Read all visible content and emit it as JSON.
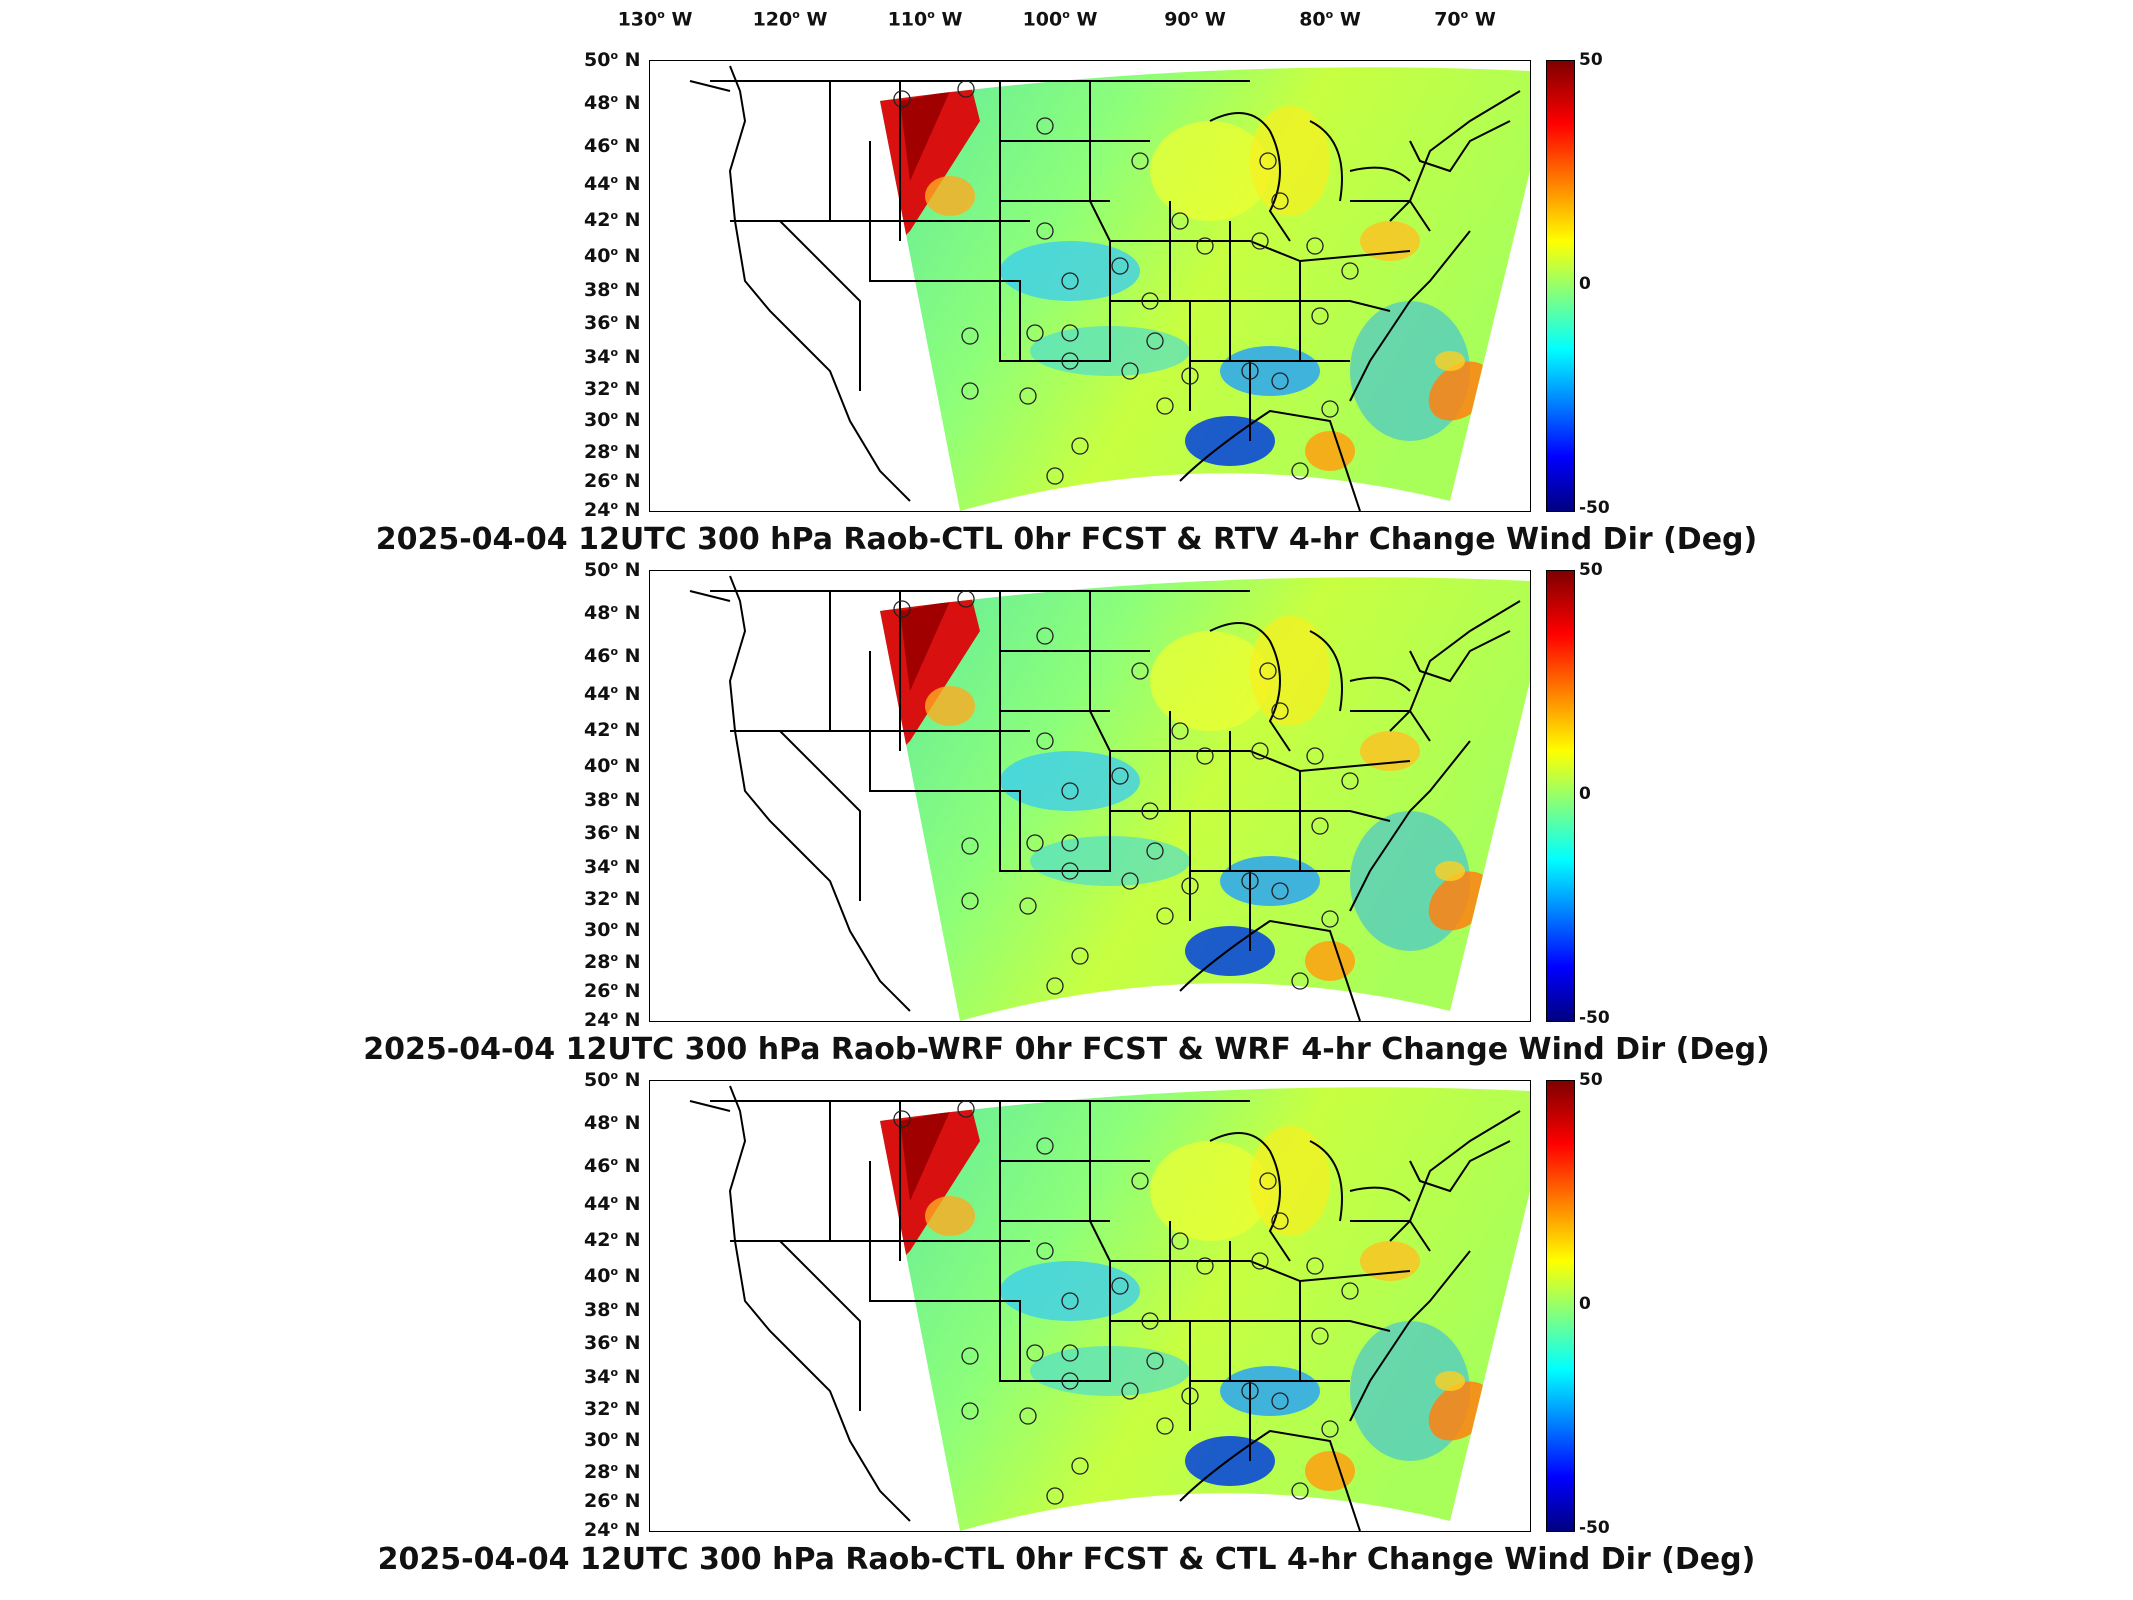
{
  "lon_labels": [
    {
      "deg": "130",
      "hem": "W"
    },
    {
      "deg": "120",
      "hem": "W"
    },
    {
      "deg": "110",
      "hem": "W"
    },
    {
      "deg": "100",
      "hem": "W"
    },
    {
      "deg": "90",
      "hem": "W"
    },
    {
      "deg": "80",
      "hem": "W"
    },
    {
      "deg": "70",
      "hem": "W"
    }
  ],
  "lat_labels": [
    {
      "deg": "50",
      "hem": "N"
    },
    {
      "deg": "48",
      "hem": "N"
    },
    {
      "deg": "46",
      "hem": "N"
    },
    {
      "deg": "44",
      "hem": "N"
    },
    {
      "deg": "42",
      "hem": "N"
    },
    {
      "deg": "40",
      "hem": "N"
    },
    {
      "deg": "38",
      "hem": "N"
    },
    {
      "deg": "36",
      "hem": "N"
    },
    {
      "deg": "34",
      "hem": "N"
    },
    {
      "deg": "32",
      "hem": "N"
    },
    {
      "deg": "30",
      "hem": "N"
    },
    {
      "deg": "28",
      "hem": "N"
    },
    {
      "deg": "26",
      "hem": "N"
    },
    {
      "deg": "24",
      "hem": "N"
    }
  ],
  "colorbar": {
    "max": "50",
    "mid": "0",
    "min": "-50"
  },
  "panels": [
    {
      "title": "2025-04-04 12UTC 300 hPa Raob-CTL 0hr FCST & RTV 4-hr Change Wind Dir (Deg)"
    },
    {
      "title": "2025-04-04 12UTC 300 hPa Raob-WRF 0hr FCST & WRF 4-hr Change Wind Dir (Deg)"
    },
    {
      "title": "2025-04-04 12UTC 300 hPa Raob-CTL 0hr FCST & CTL 4-hr Change Wind Dir (Deg)"
    }
  ],
  "colors": {
    "high": "#b00000",
    "mid": "#a8ff5a",
    "low": "#0000a0"
  }
}
